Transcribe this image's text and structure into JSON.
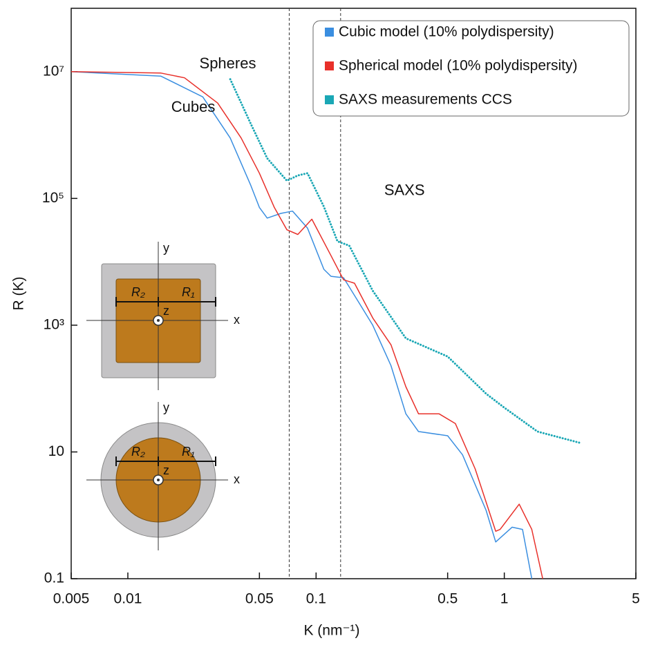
{
  "chart_data": {
    "type": "line",
    "xlabel": "K (nm⁻¹)",
    "ylabel": "R (K)",
    "log_x": true,
    "log_y": true,
    "xlim": [
      0.005,
      5
    ],
    "ylim": [
      0.1,
      100000000
    ],
    "xticks": [
      0.005,
      0.01,
      0.05,
      0.1,
      0.5,
      1,
      5
    ],
    "yticks": [
      0.1,
      10,
      {
        "value": 1000,
        "label": "10³"
      },
      {
        "value": 100000,
        "label": "10⁵"
      },
      {
        "value": 10000000,
        "label": "10⁷"
      }
    ],
    "vlines": [
      0.072,
      0.135
    ],
    "legend": "upper right",
    "series": [
      {
        "name": "Cubic model (10% polydispersity)",
        "color": "#3a8ee0",
        "style": "solid",
        "x": [
          0.005,
          0.015,
          0.025,
          0.035,
          0.045,
          0.05,
          0.055,
          0.065,
          0.075,
          0.09,
          0.11,
          0.12,
          0.14,
          0.17,
          0.2,
          0.25,
          0.3,
          0.35,
          0.5,
          0.6,
          0.8,
          0.9,
          1.1,
          1.25,
          1.4
        ],
        "values": [
          10000000,
          8500000,
          4000000,
          900000,
          160000,
          72000,
          49000,
          58000,
          63000,
          34000,
          7600,
          5900,
          5600,
          2200,
          1000,
          230,
          40,
          21,
          18,
          9,
          1.2,
          0.38,
          0.65,
          0.6,
          0.1
        ]
      },
      {
        "name": "Spherical model (10% polydispersity)",
        "color": "#e8302a",
        "style": "solid",
        "x": [
          0.005,
          0.015,
          0.02,
          0.03,
          0.04,
          0.05,
          0.06,
          0.07,
          0.08,
          0.095,
          0.12,
          0.14,
          0.16,
          0.2,
          0.25,
          0.3,
          0.35,
          0.45,
          0.55,
          0.7,
          0.9,
          0.95,
          1.2,
          1.4,
          1.6
        ],
        "values": [
          10000000,
          9500000,
          8000000,
          3200000,
          900000,
          250000,
          72000,
          32000,
          27000,
          47000,
          12500,
          5200,
          4600,
          1300,
          490,
          107,
          40,
          40,
          28,
          5.4,
          0.56,
          0.6,
          1.5,
          0.6,
          0.1
        ]
      },
      {
        "name": "SAXS measurements CCS",
        "color": "#1aa7b5",
        "style": "dotted",
        "x": [
          0.035,
          0.045,
          0.055,
          0.07,
          0.08,
          0.09,
          0.11,
          0.13,
          0.15,
          0.2,
          0.3,
          0.5,
          0.8,
          1,
          1.5,
          2.5
        ],
        "values": [
          7600000,
          1500000,
          430000,
          190000,
          230000,
          250000,
          74000,
          21000,
          18000,
          3500,
          620,
          320,
          83,
          50,
          21,
          14
        ]
      }
    ],
    "annotations": [
      {
        "text": "Spheres",
        "x": 0.024,
        "y": 13000000,
        "color": "#e8302a"
      },
      {
        "text": "Cubes",
        "x": 0.017,
        "y": 2700000,
        "color": "#3a8ee0"
      },
      {
        "text": "SAXS",
        "x": 0.23,
        "y": 130000,
        "color": "#1aa7b5"
      }
    ],
    "insets": [
      {
        "shape": "square",
        "y": "y",
        "x": "x",
        "z": "z",
        "r_inner": "R₂",
        "r_outer": "R₁"
      },
      {
        "shape": "circle",
        "y": "y",
        "x": "x",
        "z": "z",
        "r_inner": "R₂",
        "r_outer": "R₁"
      }
    ]
  }
}
